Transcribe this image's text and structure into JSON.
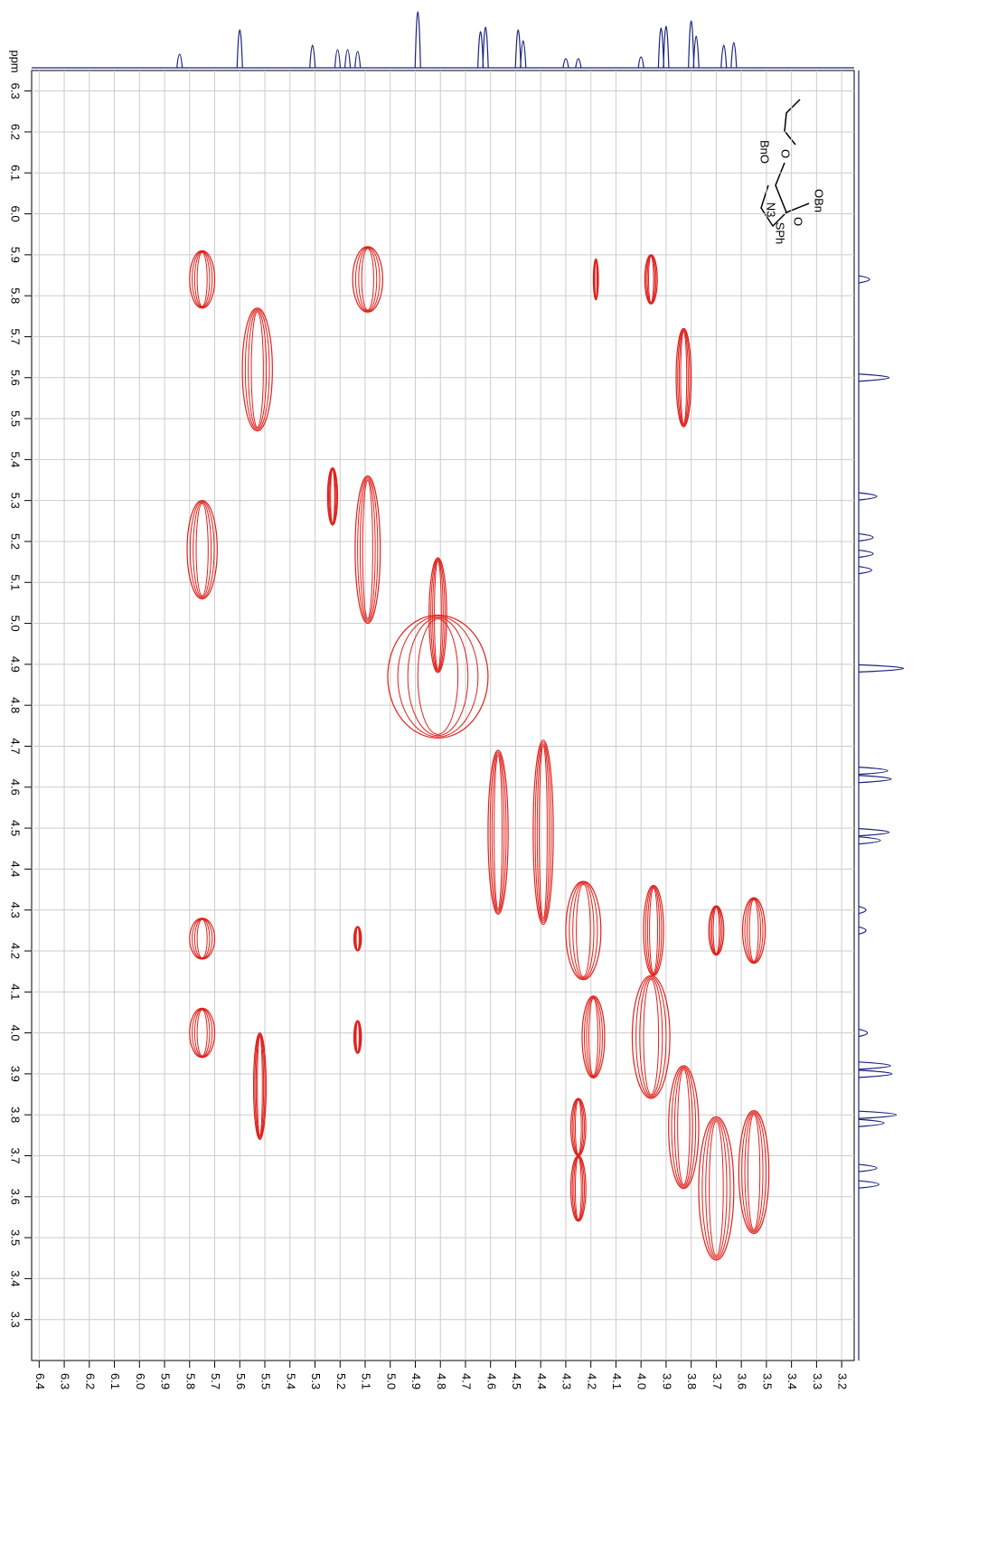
{
  "chart_data": {
    "type": "contour2d",
    "x_label": "ppm",
    "y_label": "ppm",
    "xlim": [
      6.43,
      3.15
    ],
    "ylim": [
      6.35,
      3.2
    ],
    "xticks": [
      6.4,
      6.3,
      6.2,
      6.1,
      {
        "value": 6,
        "label": "6.0"
      },
      5.9,
      5.8,
      5.7,
      5.6,
      5.5,
      5.4,
      5.3,
      5.2,
      5.1,
      {
        "value": 5,
        "label": "5.0"
      },
      4.9,
      4.8,
      4.7,
      4.6,
      4.5,
      4.4,
      4.3,
      4.2,
      4.1,
      {
        "value": 4,
        "label": "4.0"
      },
      3.9,
      3.8,
      3.7,
      3.6,
      3.5,
      3.4,
      3.3,
      3.2
    ],
    "yticks": [
      6.3,
      6.2,
      6.1,
      {
        "value": 6,
        "label": "6.0"
      },
      5.9,
      5.8,
      5.7,
      5.6,
      5.5,
      5.4,
      5.3,
      5.2,
      5.1,
      {
        "value": 5,
        "label": "5.0"
      },
      4.9,
      4.8,
      4.7,
      4.6,
      4.5,
      4.4,
      4.3,
      4.2,
      4.1,
      {
        "value": 4,
        "label": "4.0"
      },
      3.9,
      3.8,
      3.7,
      3.6,
      3.5,
      3.4,
      3.3
    ],
    "grid": true,
    "contour_color": "#e0201b",
    "trace_color": "#1a237e",
    "peaks": {
      "x": [
        5.75,
        5.53,
        3.83,
        5.09,
        4.18,
        3.96,
        5.75,
        5.23,
        5.09,
        4.81,
        4.81,
        4.57,
        4.39,
        4.23,
        3.95,
        3.7,
        3.55,
        5.75,
        5.13,
        5.75,
        5.13,
        5.52,
        4.19,
        3.96,
        3.83,
        3.7,
        3.55,
        4.25,
        4.25
      ],
      "y": [
        5.84,
        5.62,
        5.6,
        5.84,
        5.84,
        5.84,
        5.18,
        5.31,
        5.18,
        5.02,
        4.87,
        4.49,
        4.49,
        4.25,
        4.25,
        4.25,
        4.25,
        4.23,
        4.23,
        4.0,
        3.99,
        3.87,
        3.99,
        3.99,
        3.77,
        3.62,
        3.66,
        3.77,
        3.62
      ],
      "xspan": [
        0.1,
        0.12,
        0.06,
        0.12,
        0.02,
        0.05,
        0.12,
        0.04,
        0.1,
        0.07,
        0.4,
        0.08,
        0.08,
        0.14,
        0.08,
        0.06,
        0.09,
        0.1,
        0.03,
        0.1,
        0.03,
        0.05,
        0.09,
        0.15,
        0.12,
        0.14,
        0.12,
        0.06,
        0.06
      ],
      "yspan": [
        0.14,
        0.3,
        0.24,
        0.16,
        0.1,
        0.12,
        0.24,
        0.14,
        0.36,
        0.28,
        0.3,
        0.4,
        0.45,
        0.24,
        0.22,
        0.12,
        0.16,
        0.1,
        0.06,
        0.12,
        0.08,
        0.26,
        0.2,
        0.3,
        0.3,
        0.35,
        0.3,
        0.14,
        0.16
      ]
    },
    "projection": {
      "shifts": [
        5.84,
        5.6,
        5.31,
        5.21,
        5.17,
        5.13,
        4.89,
        4.64,
        4.62,
        4.49,
        4.47,
        4.3,
        4.25,
        4.0,
        3.92,
        3.9,
        3.8,
        3.78,
        3.67,
        3.63
      ],
      "heights": [
        15,
        42,
        25,
        20,
        20,
        18,
        62,
        40,
        45,
        42,
        30,
        10,
        10,
        12,
        44,
        46,
        52,
        35,
        25,
        28
      ]
    },
    "structure_labels": [
      "O",
      "BnO",
      "OBn",
      "N3",
      "SPh",
      "O"
    ]
  }
}
